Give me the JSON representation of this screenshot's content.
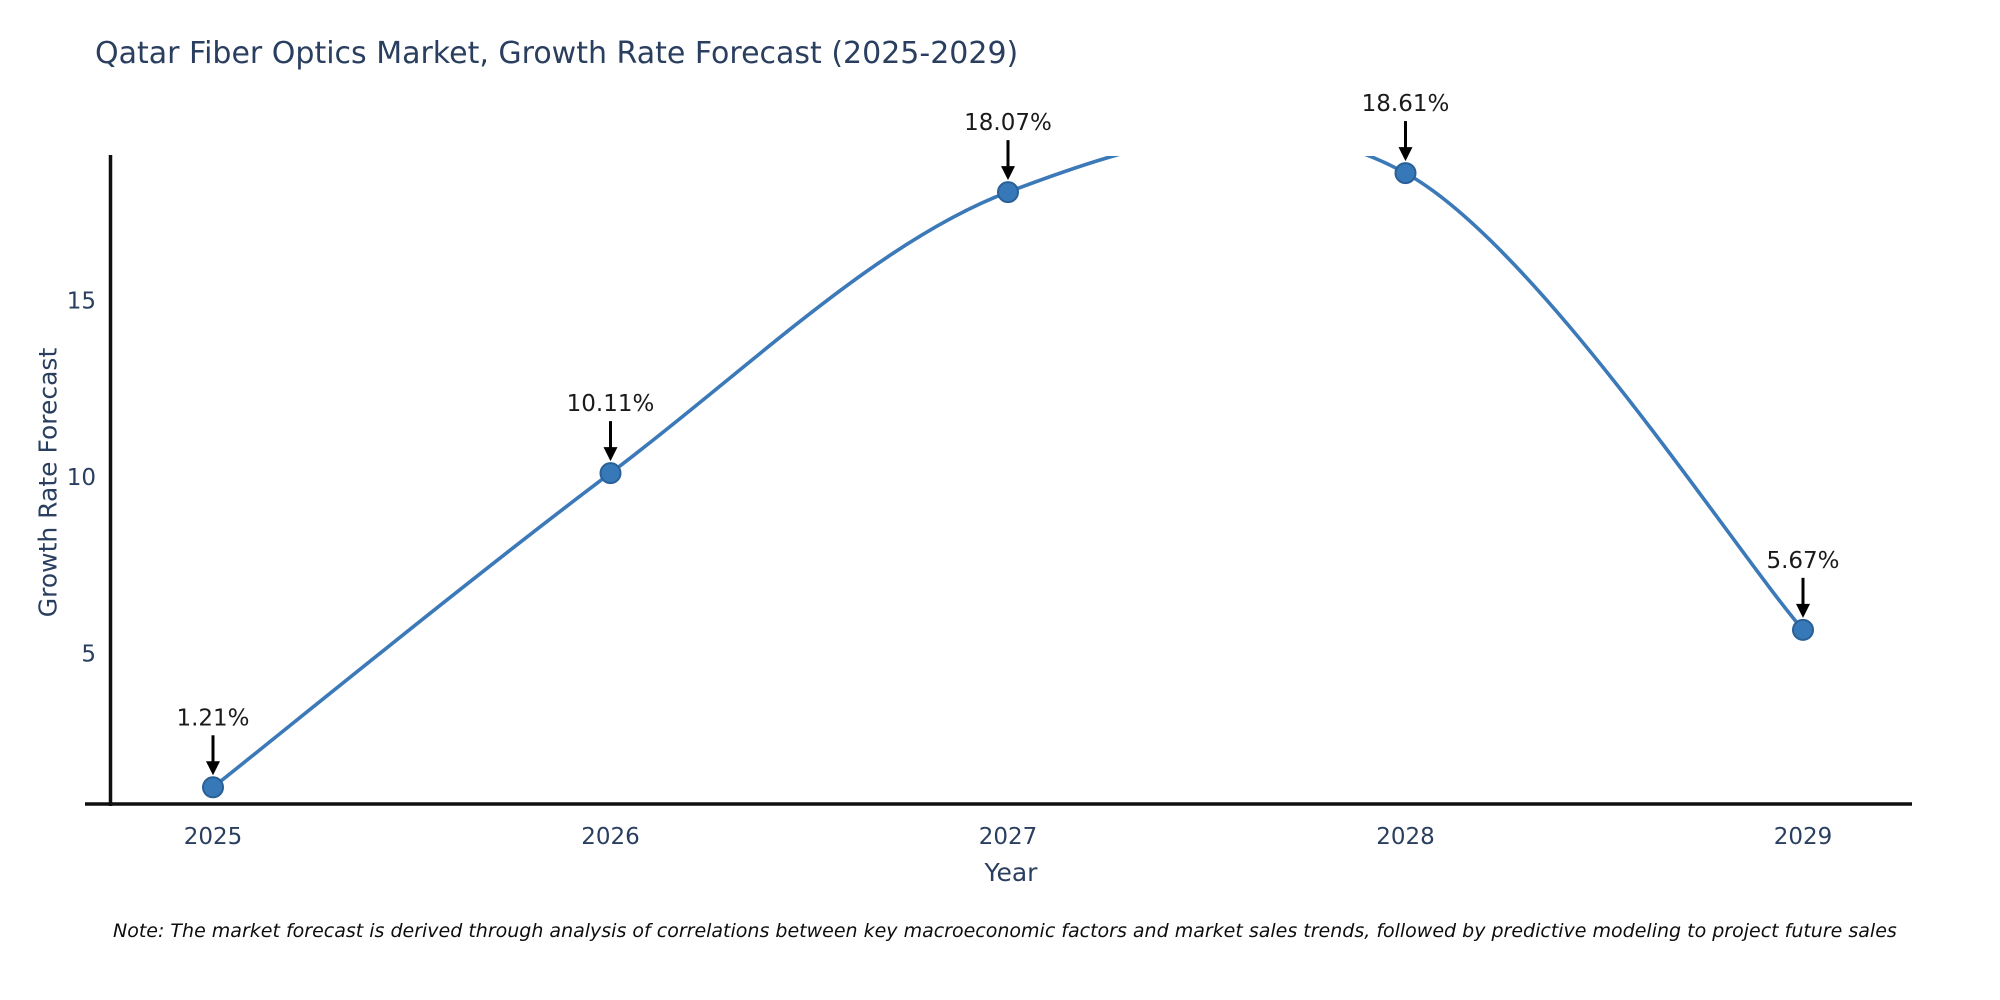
{
  "header": {
    "title": "Qatar Fiber Optics Market, Growth Rate Forecast (2025-2029)"
  },
  "footnote": "Note: The market forecast is derived through analysis of correlations between key macroeconomic factors and market sales trends, followed by predictive modeling to project future sales",
  "chart_data": {
    "type": "line",
    "line_shape": "spline",
    "title": "Qatar Fiber Optics Market, Growth Rate Forecast (2025-2029)",
    "xlabel": "Year",
    "ylabel": "Growth Rate Forecast",
    "categories": [
      "2025",
      "2026",
      "2027",
      "2028",
      "2029"
    ],
    "series": [
      {
        "name": "Growth Rate Forecast",
        "values": [
          1.21,
          10.11,
          18.07,
          18.61,
          5.67
        ]
      }
    ],
    "point_labels": [
      "1.21%",
      "10.11%",
      "18.07%",
      "18.61%",
      "5.67%"
    ],
    "yticks": [
      5,
      10,
      15
    ],
    "ylim": [
      0.74,
      19.1
    ],
    "grid": false,
    "legend": "none",
    "markers": true,
    "annotations_have_arrows": true,
    "colors": {
      "line": "#3b79b8",
      "marker_fill": "#3779b8",
      "marker_edge": "#2a6096",
      "arrow": "#000000",
      "annotation_text": "#1a1a1a",
      "axis_line": "#0f0f0f",
      "tick_label": "#2a3f5f",
      "title_text": "#2a3f5f",
      "background": "#ffffff"
    }
  }
}
